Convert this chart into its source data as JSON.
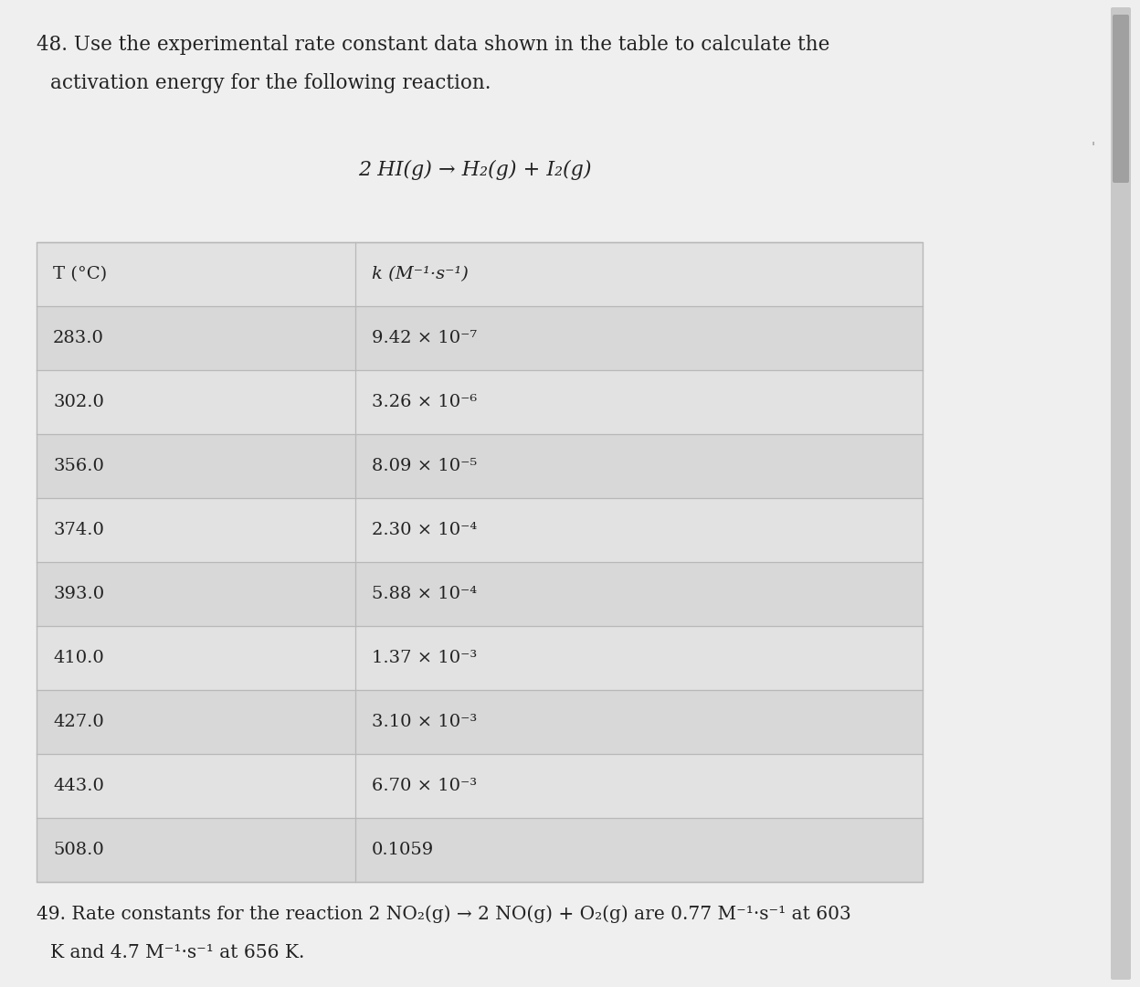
{
  "title_line1": "48. Use the experimental rate constant data shown in the table to calculate the",
  "title_line2": "activation energy for the following reaction.",
  "reaction": "2 HI(g) → H₂(g) + I₂(g)",
  "col1_header": "T (°C)",
  "col2_header": "k (M⁻¹·s⁻¹)",
  "temperatures": [
    "283.0",
    "302.0",
    "356.0",
    "374.0",
    "393.0",
    "410.0",
    "427.0",
    "443.0",
    "508.0"
  ],
  "rate_constants": [
    "9.42 × 10⁻⁷",
    "3.26 × 10⁻⁶",
    "8.09 × 10⁻⁵",
    "2.30 × 10⁻⁴",
    "5.88 × 10⁻⁴",
    "1.37 × 10⁻³",
    "3.10 × 10⁻³",
    "6.70 × 10⁻³",
    "0.1059"
  ],
  "footer_line1": "49. Rate constants for the reaction 2 NO₂(g) → 2 NO(g) + O₂(g) are 0.77 M⁻¹·s⁻¹ at 603",
  "footer_line2": "K and 4.7 M⁻¹·s⁻¹ at 656 K.",
  "page_color": "#efefef",
  "text_color": "#222222",
  "table_bg_even": "#e2e2e2",
  "table_bg_odd": "#d8d8d8",
  "table_line_color": "#b8b8b8",
  "scrollbar_track": "#c8c8c8",
  "scrollbar_thumb": "#a0a0a0"
}
